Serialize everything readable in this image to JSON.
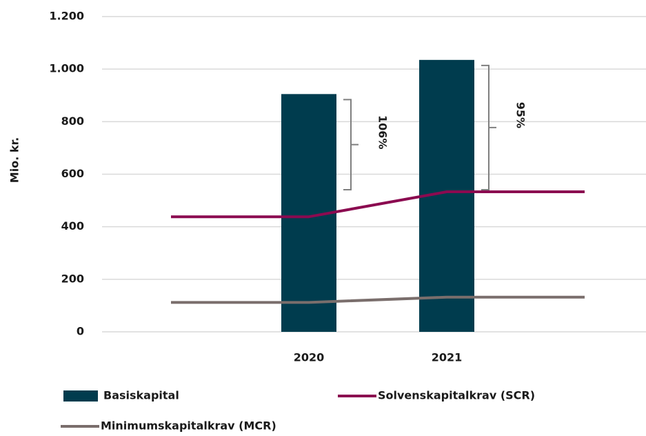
{
  "chart_data": {
    "type": "bar",
    "y_label": "Mio. kr.",
    "categories": [
      null,
      "2020",
      "2021",
      null
    ],
    "series": [
      {
        "name": "Basiskapital",
        "type": "bar",
        "color": "#003c4e",
        "values": [
          null,
          905,
          1035,
          null
        ]
      },
      {
        "name": "Solvenskapitalkrav (SCR)",
        "type": "line",
        "color": "#8b0a50",
        "values": [
          438,
          438,
          533,
          533
        ]
      },
      {
        "name": "Minimumskapitalkrav (MCR)",
        "type": "line",
        "color": "#7a6e6c",
        "values": [
          112,
          112,
          132,
          132
        ]
      }
    ],
    "annotations": [
      {
        "category": 1,
        "text": "106%"
      },
      {
        "category": 2,
        "text": "95%"
      }
    ],
    "ylim": [
      0,
      1200
    ],
    "yticks": [
      0,
      200,
      400,
      600,
      800,
      {
        "value": 1000,
        "label": "1.000"
      },
      {
        "value": 1200,
        "label": "1.200"
      }
    ],
    "grid": true
  }
}
